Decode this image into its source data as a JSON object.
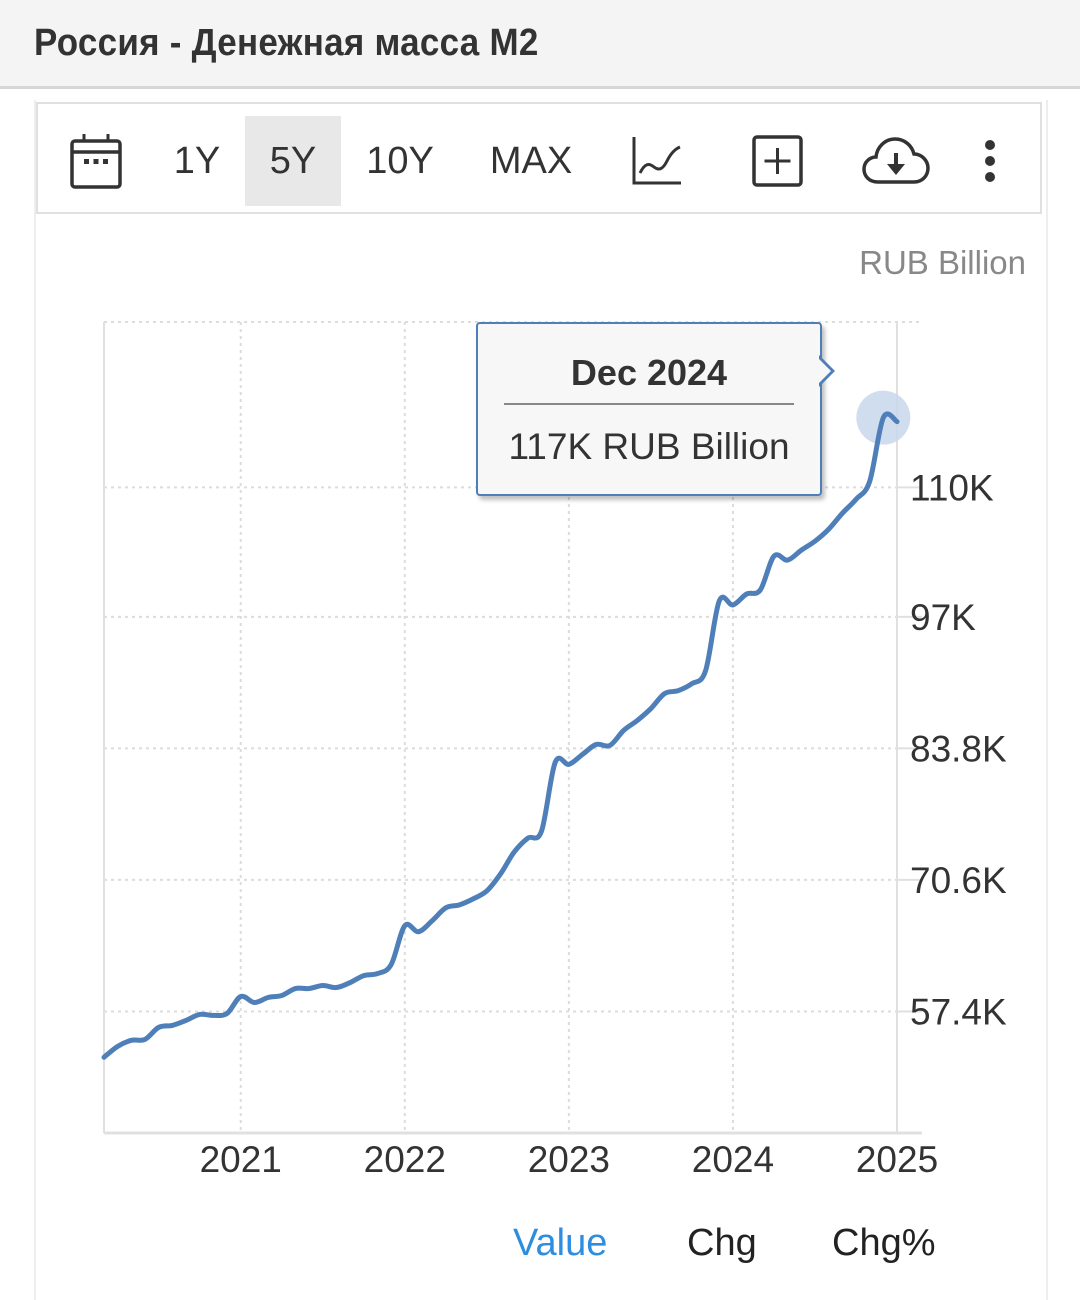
{
  "header": {
    "title": "Россия - Денежная масса M2"
  },
  "toolbar": {
    "calendar_icon": "calendar-icon",
    "ranges": [
      {
        "label": "1Y",
        "active": false
      },
      {
        "label": "5Y",
        "active": true
      },
      {
        "label": "10Y",
        "active": false
      },
      {
        "label": "MAX",
        "active": false
      }
    ],
    "icons": [
      "line-chart-icon",
      "add-box-icon",
      "cloud-download-icon",
      "more-vertical-icon"
    ]
  },
  "tooltip": {
    "date": "Dec 2024",
    "value": "117K RUB Billion"
  },
  "tabs": [
    {
      "label": "Value",
      "active": true
    },
    {
      "label": "Chg",
      "active": false
    },
    {
      "label": "Chg%",
      "active": false
    }
  ],
  "colors": {
    "line": "#4f7fb8",
    "active_tab": "#2d8ee0",
    "highlight": "#c8d7ec"
  },
  "chart_data": {
    "type": "line",
    "title": "Россия - Денежная масса M2",
    "unit_label": "RUB Billion",
    "xlabel": "",
    "ylabel": "RUB Billion",
    "x_ticks": [
      "2021",
      "2022",
      "2023",
      "2024",
      "2025"
    ],
    "y_ticks": [
      {
        "value": 57400,
        "label": "57.4K"
      },
      {
        "value": 70600,
        "label": "70.6K"
      },
      {
        "value": 83800,
        "label": "83.8K"
      },
      {
        "value": 97000,
        "label": "97K"
      },
      {
        "value": 110000,
        "label": "110K"
      }
    ],
    "ylim": [
      45200,
      126600
    ],
    "xlim": [
      "2020-03",
      "2025-01"
    ],
    "grid": true,
    "highlight": {
      "x": "2024-12",
      "y": 117000
    },
    "series": [
      {
        "name": "M2",
        "points": [
          [
            "2020-03",
            52800
          ],
          [
            "2020-04",
            53900
          ],
          [
            "2020-05",
            54500
          ],
          [
            "2020-06",
            54600
          ],
          [
            "2020-07",
            55800
          ],
          [
            "2020-08",
            56000
          ],
          [
            "2020-09",
            56500
          ],
          [
            "2020-10",
            57100
          ],
          [
            "2020-11",
            57000
          ],
          [
            "2020-12",
            57200
          ],
          [
            "2021-01",
            58900
          ],
          [
            "2021-02",
            58300
          ],
          [
            "2021-03",
            58800
          ],
          [
            "2021-04",
            59000
          ],
          [
            "2021-05",
            59700
          ],
          [
            "2021-06",
            59700
          ],
          [
            "2021-07",
            60000
          ],
          [
            "2021-08",
            59800
          ],
          [
            "2021-09",
            60300
          ],
          [
            "2021-10",
            61000
          ],
          [
            "2021-11",
            61200
          ],
          [
            "2021-12",
            62100
          ],
          [
            "2022-01",
            66000
          ],
          [
            "2022-02",
            65400
          ],
          [
            "2022-03",
            66500
          ],
          [
            "2022-04",
            67800
          ],
          [
            "2022-05",
            68100
          ],
          [
            "2022-06",
            68700
          ],
          [
            "2022-07",
            69500
          ],
          [
            "2022-08",
            71200
          ],
          [
            "2022-09",
            73400
          ],
          [
            "2022-10",
            74800
          ],
          [
            "2022-11",
            75500
          ],
          [
            "2022-12",
            82400
          ],
          [
            "2023-01",
            82200
          ],
          [
            "2023-02",
            83200
          ],
          [
            "2023-03",
            84200
          ],
          [
            "2023-04",
            84100
          ],
          [
            "2023-05",
            85600
          ],
          [
            "2023-06",
            86600
          ],
          [
            "2023-07",
            87800
          ],
          [
            "2023-08",
            89300
          ],
          [
            "2023-09",
            89600
          ],
          [
            "2023-10",
            90300
          ],
          [
            "2023-11",
            91600
          ],
          [
            "2023-12",
            98600
          ],
          [
            "2024-01",
            98200
          ],
          [
            "2024-02",
            99300
          ],
          [
            "2024-03",
            99700
          ],
          [
            "2024-04",
            103100
          ],
          [
            "2024-05",
            102700
          ],
          [
            "2024-06",
            103700
          ],
          [
            "2024-07",
            104600
          ],
          [
            "2024-08",
            105800
          ],
          [
            "2024-09",
            107400
          ],
          [
            "2024-10",
            108800
          ],
          [
            "2024-11",
            110600
          ],
          [
            "2024-12",
            117000
          ],
          [
            "2025-01",
            116600
          ]
        ]
      }
    ]
  }
}
